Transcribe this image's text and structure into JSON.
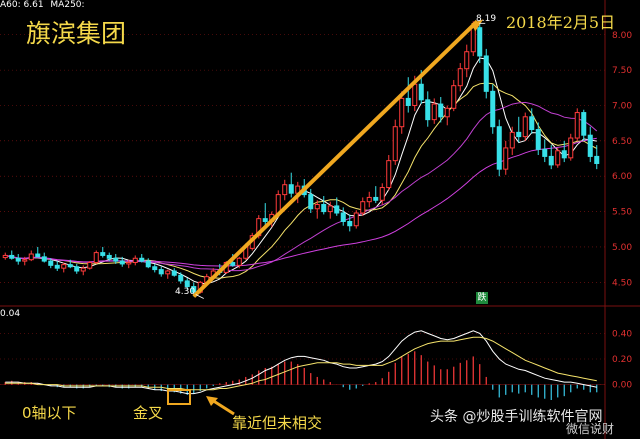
{
  "chart_data": [
    {
      "type": "candlestick",
      "title": "旗滨集团",
      "annotation_date": "2018年2月5日",
      "legend_text": [
        "A60: 6.61",
        "MA250:"
      ],
      "legend_colors": [
        "#ffffff",
        "#ffffff"
      ],
      "y_ticks": [
        "8.00",
        "7.50",
        "7.00",
        "6.50",
        "6.00",
        "5.50",
        "5.00",
        "4.50"
      ],
      "ylim": [
        4.25,
        8.35
      ],
      "high_label": "8.19",
      "low_label": "4.30",
      "sell_badge": "跌",
      "candles": [
        [
          4.85,
          4.92,
          4.82,
          4.88
        ],
        [
          4.88,
          4.95,
          4.82,
          4.84
        ],
        [
          4.84,
          4.9,
          4.75,
          4.8
        ],
        [
          4.8,
          4.86,
          4.74,
          4.82
        ],
        [
          4.82,
          4.95,
          4.8,
          4.9
        ],
        [
          4.9,
          5.0,
          4.86,
          4.86
        ],
        [
          4.86,
          4.92,
          4.78,
          4.8
        ],
        [
          4.8,
          4.84,
          4.7,
          4.74
        ],
        [
          4.74,
          4.8,
          4.66,
          4.7
        ],
        [
          4.7,
          4.78,
          4.64,
          4.75
        ],
        [
          4.75,
          4.82,
          4.7,
          4.72
        ],
        [
          4.72,
          4.76,
          4.62,
          4.66
        ],
        [
          4.66,
          4.74,
          4.6,
          4.7
        ],
        [
          4.7,
          4.8,
          4.68,
          4.78
        ],
        [
          4.78,
          4.95,
          4.76,
          4.92
        ],
        [
          4.92,
          5.0,
          4.85,
          4.88
        ],
        [
          4.88,
          4.92,
          4.8,
          4.84
        ],
        [
          4.84,
          4.9,
          4.76,
          4.8
        ],
        [
          4.8,
          4.86,
          4.72,
          4.76
        ],
        [
          4.76,
          4.82,
          4.7,
          4.78
        ],
        [
          4.78,
          4.88,
          4.74,
          4.84
        ],
        [
          4.84,
          4.9,
          4.78,
          4.8
        ],
        [
          4.8,
          4.84,
          4.7,
          4.72
        ],
        [
          4.72,
          4.76,
          4.64,
          4.68
        ],
        [
          4.68,
          4.72,
          4.58,
          4.62
        ],
        [
          4.62,
          4.68,
          4.55,
          4.66
        ],
        [
          4.66,
          4.7,
          4.58,
          4.6
        ],
        [
          4.6,
          4.64,
          4.48,
          4.52
        ],
        [
          4.52,
          4.56,
          4.4,
          4.44
        ],
        [
          4.44,
          4.5,
          4.3,
          4.36
        ],
        [
          4.36,
          4.52,
          4.34,
          4.5
        ],
        [
          4.5,
          4.62,
          4.46,
          4.58
        ],
        [
          4.58,
          4.7,
          4.54,
          4.66
        ],
        [
          4.66,
          4.76,
          4.6,
          4.64
        ],
        [
          4.64,
          4.8,
          4.62,
          4.78
        ],
        [
          4.78,
          4.9,
          4.72,
          4.74
        ],
        [
          4.74,
          4.86,
          4.7,
          4.84
        ],
        [
          4.84,
          5.05,
          4.82,
          5.0
        ],
        [
          4.98,
          5.2,
          4.95,
          5.16
        ],
        [
          5.16,
          5.45,
          5.12,
          5.4
        ],
        [
          5.4,
          5.62,
          5.3,
          5.36
        ],
        [
          5.36,
          5.5,
          5.28,
          5.46
        ],
        [
          5.46,
          5.8,
          5.42,
          5.74
        ],
        [
          5.74,
          5.95,
          5.66,
          5.88
        ],
        [
          5.88,
          6.05,
          5.7,
          5.76
        ],
        [
          5.76,
          5.92,
          5.62,
          5.86
        ],
        [
          5.86,
          5.96,
          5.7,
          5.74
        ],
        [
          5.74,
          5.82,
          5.48,
          5.54
        ],
        [
          5.54,
          5.66,
          5.4,
          5.6
        ],
        [
          5.6,
          5.72,
          5.46,
          5.5
        ],
        [
          5.5,
          5.64,
          5.4,
          5.58
        ],
        [
          5.58,
          5.7,
          5.44,
          5.48
        ],
        [
          5.48,
          5.56,
          5.3,
          5.36
        ],
        [
          5.36,
          5.46,
          5.22,
          5.3
        ],
        [
          5.3,
          5.52,
          5.26,
          5.48
        ],
        [
          5.48,
          5.7,
          5.44,
          5.64
        ],
        [
          5.64,
          5.78,
          5.56,
          5.7
        ],
        [
          5.7,
          5.86,
          5.62,
          5.66
        ],
        [
          5.66,
          5.9,
          5.6,
          5.84
        ],
        [
          5.84,
          6.3,
          5.8,
          6.22
        ],
        [
          6.22,
          6.8,
          6.16,
          6.7
        ],
        [
          6.7,
          7.2,
          6.6,
          7.1
        ],
        [
          7.1,
          7.4,
          6.9,
          7.0
        ],
        [
          7.0,
          7.42,
          6.92,
          7.3
        ],
        [
          7.3,
          7.5,
          7.02,
          7.08
        ],
        [
          7.08,
          7.2,
          6.7,
          6.8
        ],
        [
          6.8,
          7.1,
          6.74,
          7.02
        ],
        [
          7.02,
          7.12,
          6.76,
          6.84
        ],
        [
          6.84,
          7.0,
          6.72,
          6.96
        ],
        [
          6.96,
          7.36,
          6.92,
          7.28
        ],
        [
          7.28,
          7.6,
          7.2,
          7.52
        ],
        [
          7.52,
          7.86,
          7.4,
          7.76
        ],
        [
          7.76,
          8.19,
          7.7,
          8.1
        ],
        [
          8.1,
          8.16,
          7.6,
          7.7
        ],
        [
          7.7,
          7.8,
          7.1,
          7.2
        ],
        [
          7.2,
          7.3,
          6.6,
          6.7
        ],
        [
          6.7,
          6.8,
          6.0,
          6.1
        ],
        [
          6.1,
          6.5,
          6.02,
          6.4
        ],
        [
          6.4,
          6.7,
          6.3,
          6.62
        ],
        [
          6.62,
          6.84,
          6.48,
          6.56
        ],
        [
          6.56,
          6.9,
          6.5,
          6.84
        ],
        [
          6.84,
          6.96,
          6.6,
          6.66
        ],
        [
          6.66,
          6.76,
          6.3,
          6.38
        ],
        [
          6.38,
          6.52,
          6.2,
          6.28
        ],
        [
          6.28,
          6.44,
          6.1,
          6.16
        ],
        [
          6.16,
          6.4,
          6.12,
          6.36
        ],
        [
          6.36,
          6.5,
          6.2,
          6.26
        ],
        [
          6.26,
          6.6,
          6.22,
          6.54
        ],
        [
          6.54,
          6.96,
          6.5,
          6.9
        ],
        [
          6.9,
          6.94,
          6.5,
          6.58
        ],
        [
          6.58,
          6.7,
          6.2,
          6.28
        ],
        [
          6.28,
          6.44,
          6.1,
          6.18
        ]
      ]
    },
    {
      "type": "bar",
      "legend_text": "0.04",
      "y_ticks": [
        "0.40",
        "0.20",
        "0.00"
      ],
      "ylim": [
        -0.12,
        0.52
      ],
      "histogram": [
        0.02,
        0.03,
        0.02,
        0.02,
        0.02,
        0.01,
        0.0,
        -0.01,
        -0.02,
        -0.02,
        -0.02,
        -0.03,
        -0.03,
        -0.02,
        -0.01,
        -0.01,
        -0.02,
        -0.02,
        -0.03,
        -0.03,
        -0.02,
        -0.02,
        -0.03,
        -0.04,
        -0.05,
        -0.05,
        -0.06,
        -0.07,
        -0.08,
        -0.07,
        -0.05,
        -0.03,
        -0.01,
        0.01,
        0.02,
        0.03,
        0.04,
        0.06,
        0.08,
        0.11,
        0.13,
        0.14,
        0.16,
        0.18,
        0.18,
        0.16,
        0.13,
        0.09,
        0.06,
        0.04,
        0.02,
        0.0,
        -0.02,
        -0.04,
        -0.03,
        -0.01,
        0.01,
        0.02,
        0.05,
        0.1,
        0.17,
        0.22,
        0.24,
        0.26,
        0.23,
        0.18,
        0.15,
        0.12,
        0.12,
        0.14,
        0.17,
        0.19,
        0.22,
        0.16,
        0.06,
        -0.04,
        -0.1,
        -0.08,
        -0.06,
        -0.07,
        -0.06,
        -0.08,
        -0.1,
        -0.11,
        -0.12,
        -0.1,
        -0.09,
        -0.06,
        -0.03,
        -0.04,
        -0.06,
        -0.06
      ],
      "dif": [
        0.02,
        0.02,
        0.02,
        0.01,
        0.01,
        0.01,
        0.0,
        -0.01,
        -0.01,
        -0.02,
        -0.02,
        -0.02,
        -0.02,
        -0.02,
        -0.01,
        -0.01,
        -0.01,
        -0.02,
        -0.02,
        -0.02,
        -0.02,
        -0.02,
        -0.03,
        -0.04,
        -0.04,
        -0.05,
        -0.05,
        -0.06,
        -0.07,
        -0.07,
        -0.06,
        -0.04,
        -0.03,
        -0.02,
        -0.01,
        0.0,
        0.01,
        0.03,
        0.05,
        0.08,
        0.11,
        0.13,
        0.16,
        0.19,
        0.21,
        0.22,
        0.22,
        0.21,
        0.2,
        0.19,
        0.17,
        0.16,
        0.14,
        0.13,
        0.13,
        0.14,
        0.15,
        0.16,
        0.18,
        0.22,
        0.28,
        0.34,
        0.38,
        0.41,
        0.42,
        0.4,
        0.38,
        0.36,
        0.35,
        0.36,
        0.38,
        0.4,
        0.42,
        0.4,
        0.34,
        0.26,
        0.2,
        0.16,
        0.14,
        0.12,
        0.11,
        0.09,
        0.07,
        0.05,
        0.04,
        0.03,
        0.02,
        0.02,
        0.01,
        0.0,
        -0.01,
        -0.02
      ],
      "dea": [
        0.01,
        0.01,
        0.01,
        0.01,
        0.01,
        0.0,
        0.0,
        0.0,
        0.0,
        -0.01,
        -0.01,
        -0.01,
        -0.01,
        -0.01,
        -0.01,
        -0.01,
        -0.01,
        -0.01,
        -0.01,
        -0.01,
        -0.01,
        -0.01,
        -0.02,
        -0.02,
        -0.02,
        -0.03,
        -0.03,
        -0.03,
        -0.04,
        -0.04,
        -0.04,
        -0.04,
        -0.04,
        -0.03,
        -0.03,
        -0.02,
        -0.01,
        0.0,
        0.01,
        0.03,
        0.04,
        0.06,
        0.08,
        0.1,
        0.12,
        0.14,
        0.15,
        0.16,
        0.17,
        0.17,
        0.17,
        0.17,
        0.16,
        0.16,
        0.15,
        0.15,
        0.15,
        0.15,
        0.15,
        0.17,
        0.19,
        0.22,
        0.25,
        0.28,
        0.3,
        0.32,
        0.33,
        0.34,
        0.34,
        0.34,
        0.35,
        0.36,
        0.37,
        0.37,
        0.36,
        0.34,
        0.31,
        0.28,
        0.25,
        0.22,
        0.19,
        0.17,
        0.15,
        0.13,
        0.11,
        0.09,
        0.08,
        0.07,
        0.06,
        0.05,
        0.04,
        0.03
      ]
    }
  ],
  "annotations": {
    "below_zero": "0轴以下",
    "golden_cross": "金叉",
    "near_no_cross": "靠近但未相交"
  },
  "watermark": {
    "main": "头条 @炒股手训练软件官网",
    "corner": "微信说财"
  }
}
